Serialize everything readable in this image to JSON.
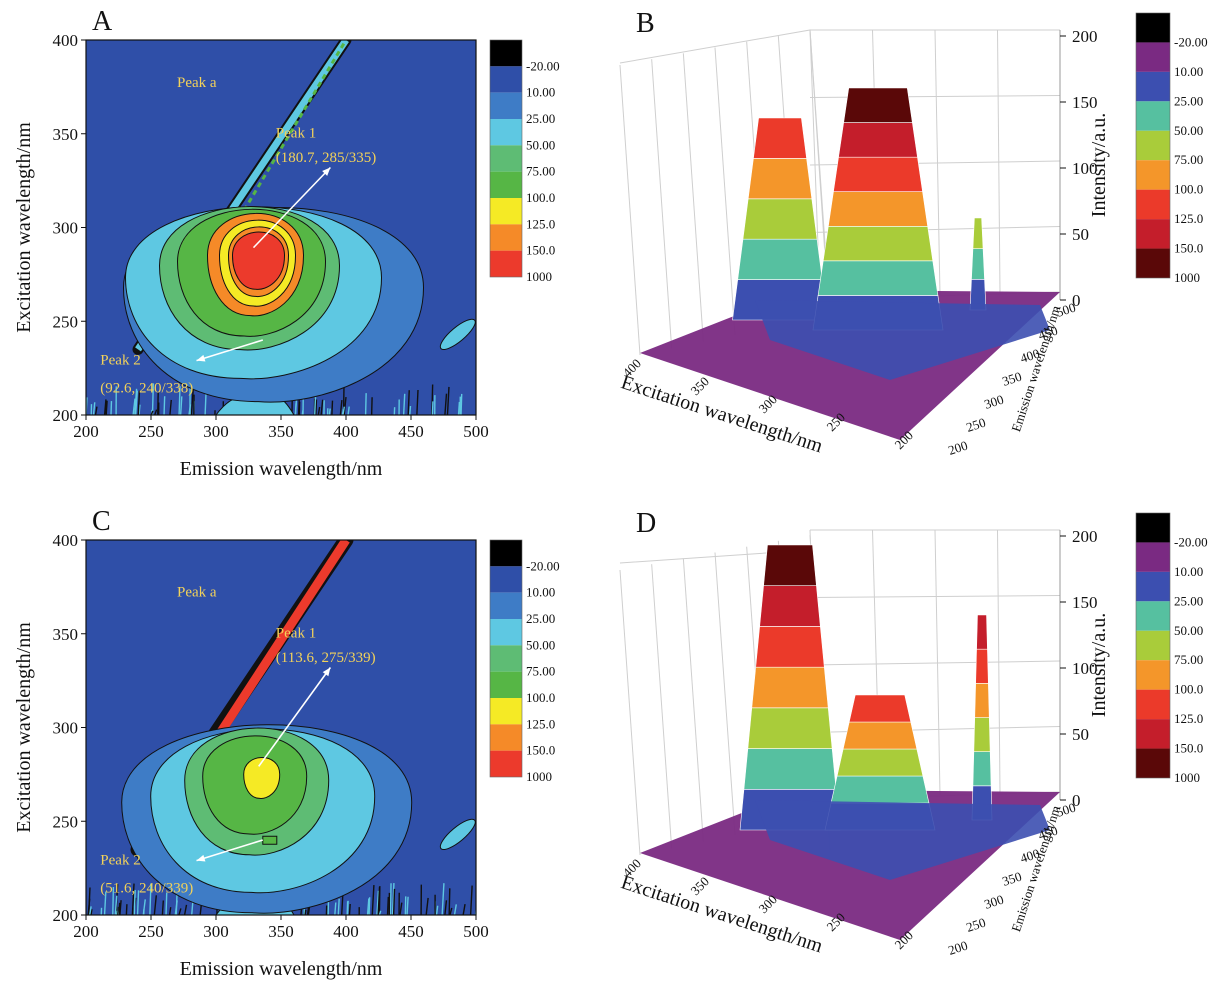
{
  "colorbar": {
    "levels": [
      "-20.00",
      "10.00",
      "25.00",
      "50.00",
      "75.00",
      "100.0",
      "125.0",
      "150.0",
      "1000"
    ],
    "colors_2d": [
      "#000000",
      "#2f4fa8",
      "#3e7cc6",
      "#5ec8e2",
      "#5ebc74",
      "#56b645",
      "#f5ea25",
      "#f58a28",
      "#ec3a2c"
    ],
    "colors_3d": [
      "#000000",
      "#7a2a82",
      "#3c4fb0",
      "#56c0a0",
      "#a9cc3a",
      "#f4962a",
      "#eb3a2a",
      "#c41e2b",
      "#5a0808"
    ]
  },
  "chart_data": [
    {
      "type": "heatmap",
      "panel": "A",
      "xlabel": "Emission wavelength/nm",
      "ylabel": "Excitation wavelength/nm",
      "xlim": [
        200,
        500
      ],
      "ylim": [
        200,
        400
      ],
      "xticks": [
        "200",
        "250",
        "300",
        "350",
        "400",
        "450",
        "500"
      ],
      "yticks": [
        "200",
        "250",
        "300",
        "350",
        "400"
      ],
      "peaks": [
        {
          "name": "Peak 1",
          "label": "(180.7, 285/335)",
          "intensity": 180.7,
          "ex": 285,
          "em": 335
        },
        {
          "name": "Peak 2",
          "label": "(92.6, 240/338)",
          "intensity": 92.6,
          "ex": 240,
          "em": 338
        }
      ],
      "scatter_label": "Peak a"
    },
    {
      "type": "surface3d",
      "panel": "B",
      "xlabel": "Excitation wavelength/nm",
      "ylabel": "Emission wavelength/nm",
      "zlabel": "Intensity/a.u.",
      "ex_ticks": [
        "400",
        "350",
        "300",
        "250",
        "200"
      ],
      "em_ticks": [
        "200",
        "250",
        "300",
        "350",
        "400",
        "450",
        "500"
      ],
      "z_ticks": [
        "0",
        "50",
        "100",
        "150",
        "200"
      ],
      "zlim": [
        0,
        200
      ]
    },
    {
      "type": "heatmap",
      "panel": "C",
      "xlabel": "Emission wavelength/nm",
      "ylabel": "Excitation wavelength/nm",
      "xlim": [
        200,
        500
      ],
      "ylim": [
        200,
        400
      ],
      "xticks": [
        "200",
        "250",
        "300",
        "350",
        "400",
        "450",
        "500"
      ],
      "yticks": [
        "200",
        "250",
        "300",
        "350",
        "400"
      ],
      "peaks": [
        {
          "name": "Peak 1",
          "label": "(113.6, 275/339)",
          "intensity": 113.6,
          "ex": 275,
          "em": 339
        },
        {
          "name": "Peak 2",
          "label": "(51.6, 240/339)",
          "intensity": 51.6,
          "ex": 240,
          "em": 339
        }
      ],
      "scatter_label": "Peak a"
    },
    {
      "type": "surface3d",
      "panel": "D",
      "xlabel": "Excitation wavelength/nm",
      "ylabel": "Emission wavelength/nm",
      "zlabel": "Intensity/a.u.",
      "ex_ticks": [
        "400",
        "350",
        "300",
        "250",
        "200"
      ],
      "em_ticks": [
        "200",
        "250",
        "300",
        "350",
        "400",
        "450",
        "500"
      ],
      "z_ticks": [
        "0",
        "50",
        "100",
        "150",
        "200"
      ],
      "zlim": [
        0,
        200
      ]
    }
  ]
}
